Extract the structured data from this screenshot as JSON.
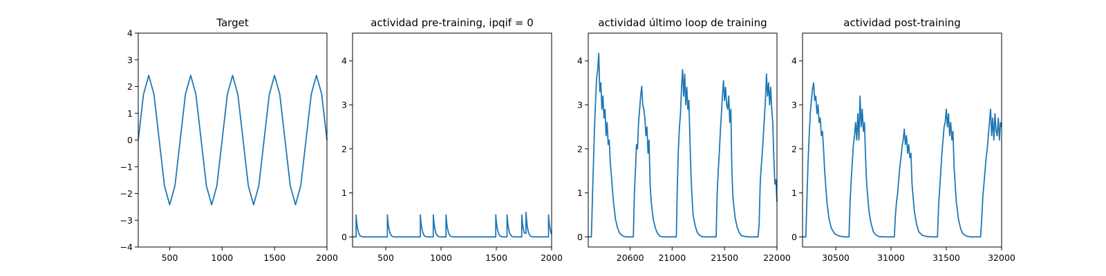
{
  "chart_data": [
    {
      "type": "line",
      "title": "Target",
      "xlabel": "",
      "ylabel": "",
      "xlim": [
        200,
        2000
      ],
      "ylim": [
        -4,
        4
      ],
      "xticks": [
        500,
        1000,
        1500,
        2000
      ],
      "xtick_labels": [
        "500",
        "1000",
        "1500",
        "2000"
      ],
      "yticks": [
        -4,
        -3,
        -2,
        -1,
        0,
        1,
        2,
        3,
        4
      ],
      "ytick_labels": [
        "−4",
        "−3",
        "−2",
        "−1",
        "0",
        "1",
        "2",
        "3",
        "4"
      ],
      "grid": false,
      "color": "#1f77b4",
      "series": [
        {
          "x": [
            200,
            250,
            300,
            350,
            400,
            450,
            500,
            550,
            600,
            650,
            700,
            750,
            800,
            850,
            900,
            950,
            1000,
            1050,
            1100,
            1150,
            1200,
            1250,
            1300,
            1350,
            1400,
            1450,
            1500,
            1550,
            1600,
            1650,
            1700,
            1750,
            1800,
            1850,
            1900,
            1950,
            2000
          ],
          "y": [
            0,
            1.71,
            2.42,
            1.71,
            0,
            -1.71,
            -2.42,
            -1.71,
            0,
            1.71,
            2.42,
            1.71,
            0,
            -1.71,
            -2.42,
            -1.71,
            0,
            1.71,
            2.42,
            1.71,
            0,
            -1.71,
            -2.42,
            -1.71,
            0,
            1.71,
            2.42,
            1.71,
            0,
            -1.71,
            -2.42,
            -1.71,
            0,
            1.71,
            2.42,
            1.71,
            0
          ]
        }
      ]
    },
    {
      "type": "line",
      "title": "actividad pre-training, ipqif = 0",
      "xlabel": "",
      "ylabel": "",
      "xlim": [
        200,
        2000
      ],
      "ylim": [
        -0.23,
        4.63
      ],
      "xticks": [
        500,
        1000,
        1500,
        2000
      ],
      "xtick_labels": [
        "500",
        "1000",
        "1500",
        "2000"
      ],
      "yticks": [
        0,
        1,
        2,
        3,
        4
      ],
      "ytick_labels": [
        "0",
        "1",
        "2",
        "3",
        "4"
      ],
      "grid": false,
      "color": "#1f77b4",
      "series": [
        {
          "x": [
            200,
            232,
            232,
            238,
            245,
            255,
            270,
            290,
            515,
            515,
            521,
            528,
            538,
            553,
            573,
            813,
            813,
            819,
            826,
            836,
            851,
            871,
            930,
            930,
            936,
            943,
            953,
            968,
            988,
            1045,
            1045,
            1051,
            1058,
            1068,
            1083,
            1103,
            1495,
            1495,
            1501,
            1508,
            1518,
            1533,
            1553,
            1597,
            1597,
            1603,
            1610,
            1620,
            1635,
            1655,
            1730,
            1730,
            1736,
            1743,
            1753,
            1768,
            1768,
            1774,
            1781,
            1791,
            1806,
            1826,
            1972,
            1972,
            1978,
            1985,
            1995,
            2000
          ],
          "y": [
            0,
            0,
            0.5,
            0.33,
            0.2,
            0.09,
            0.02,
            0,
            0,
            0.5,
            0.33,
            0.2,
            0.09,
            0.02,
            0,
            0,
            0.5,
            0.33,
            0.2,
            0.09,
            0.02,
            0,
            0,
            0.5,
            0.33,
            0.2,
            0.09,
            0.02,
            0,
            0,
            0.5,
            0.33,
            0.2,
            0.09,
            0.02,
            0,
            0,
            0.5,
            0.33,
            0.2,
            0.09,
            0.02,
            0,
            0,
            0.5,
            0.33,
            0.2,
            0.09,
            0.02,
            0,
            0,
            0.5,
            0.33,
            0.2,
            0.09,
            0.08,
            0.56,
            0.38,
            0.22,
            0.1,
            0.02,
            0,
            0,
            0.5,
            0.33,
            0.2,
            0.09,
            0.06
          ]
        }
      ]
    },
    {
      "type": "line",
      "title": "actividad último loop de training",
      "xlabel": "",
      "ylabel": "",
      "xlim": [
        20200,
        22000
      ],
      "ylim": [
        -0.23,
        4.63
      ],
      "xticks": [
        20600,
        21000,
        21500,
        22000
      ],
      "xtick_labels": [
        "20600",
        "21000",
        "21500",
        "22000"
      ],
      "yticks": [
        0,
        1,
        2,
        3,
        4
      ],
      "ytick_labels": [
        "0",
        "1",
        "2",
        "3",
        "4"
      ],
      "grid": false,
      "color": "#1f77b4",
      "series": [
        {
          "x": [
            20200,
            20230,
            20240,
            20250,
            20260,
            20270,
            20280,
            20290,
            20300,
            20310,
            20320,
            20330,
            20340,
            20350,
            20360,
            20370,
            20380,
            20390,
            20400,
            20410,
            20420,
            20440,
            20460,
            20480,
            20500,
            20530,
            20560,
            20600,
            20630,
            20640,
            20650,
            20660,
            20670,
            20680,
            20690,
            20700,
            20710,
            20720,
            20730,
            20740,
            20750,
            20760,
            20770,
            20780,
            20790,
            20800,
            20820,
            20840,
            20860,
            20880,
            20910,
            20950,
            21000,
            21040,
            21050,
            21060,
            21070,
            21080,
            21090,
            21100,
            21110,
            21120,
            21130,
            21140,
            21150,
            21160,
            21170,
            21180,
            21190,
            21200,
            21220,
            21240,
            21260,
            21280,
            21310,
            21350,
            21400,
            21420,
            21430,
            21440,
            21450,
            21460,
            21470,
            21480,
            21490,
            21500,
            21510,
            21520,
            21530,
            21540,
            21550,
            21560,
            21570,
            21580,
            21600,
            21620,
            21640,
            21660,
            21690,
            21730,
            21780,
            21820,
            21830,
            21840,
            21850,
            21860,
            21870,
            21880,
            21890,
            21900,
            21910,
            21920,
            21930,
            21940,
            21950,
            21960,
            21970,
            21980,
            21990,
            22000
          ],
          "y": [
            0,
            0,
            0.9,
            1.7,
            2.5,
            3.1,
            3.6,
            3.8,
            4.17,
            3.3,
            3.5,
            2.9,
            3.2,
            2.7,
            2.9,
            2.3,
            2.6,
            2.1,
            2.2,
            1.7,
            1.4,
            0.8,
            0.4,
            0.2,
            0.08,
            0.02,
            0,
            0,
            0,
            1.0,
            1.5,
            2.1,
            2.0,
            2.6,
            2.9,
            3.2,
            3.42,
            3.0,
            2.9,
            2.7,
            2.3,
            2.5,
            1.9,
            2.2,
            1.2,
            0.8,
            0.4,
            0.2,
            0.08,
            0.02,
            0,
            0,
            0,
            0,
            1.2,
            2.0,
            2.5,
            2.8,
            3.4,
            3.8,
            3.2,
            3.7,
            3.0,
            3.4,
            2.9,
            3.1,
            2.2,
            1.4,
            0.9,
            0.5,
            0.25,
            0.1,
            0.04,
            0.01,
            0,
            0,
            0,
            0,
            1.0,
            1.5,
            1.9,
            2.4,
            2.8,
            3.2,
            3.55,
            3.1,
            3.4,
            3.0,
            2.9,
            3.2,
            2.6,
            2.9,
            1.5,
            0.9,
            0.45,
            0.22,
            0.1,
            0.03,
            0.01,
            0,
            0,
            0,
            0.3,
            1.2,
            1.6,
            1.9,
            2.3,
            2.7,
            3.1,
            3.7,
            3.2,
            3.5,
            3.0,
            3.4,
            2.9,
            2.6,
            1.8,
            1.2,
            1.3,
            0.8
          ]
        }
      ]
    },
    {
      "type": "line",
      "title": "actividad post-training",
      "xlabel": "",
      "ylabel": "",
      "xlim": [
        30200,
        32000
      ],
      "ylim": [
        -0.23,
        4.63
      ],
      "xticks": [
        30500,
        31000,
        31500,
        32000
      ],
      "xtick_labels": [
        "30500",
        "31000",
        "31500",
        "32000"
      ],
      "yticks": [
        0,
        1,
        2,
        3,
        4
      ],
      "ytick_labels": [
        "0",
        "1",
        "2",
        "3",
        "4"
      ],
      "grid": false,
      "color": "#1f77b4",
      "series": [
        {
          "x": [
            30200,
            30230,
            30240,
            30250,
            30260,
            30270,
            30280,
            30290,
            30300,
            30310,
            30320,
            30330,
            30340,
            30350,
            30360,
            30370,
            30380,
            30390,
            30400,
            30420,
            30440,
            30460,
            30490,
            30530,
            30580,
            30620,
            30630,
            30640,
            30650,
            30660,
            30670,
            30680,
            30690,
            30700,
            30710,
            30720,
            30730,
            30740,
            30750,
            30760,
            30770,
            30780,
            30800,
            30820,
            30840,
            30860,
            30890,
            30930,
            30980,
            31030,
            31040,
            31050,
            31060,
            31070,
            31080,
            31090,
            31100,
            31110,
            31120,
            31130,
            31140,
            31150,
            31160,
            31170,
            31180,
            31190,
            31210,
            31230,
            31250,
            31280,
            31320,
            31370,
            31420,
            31430,
            31440,
            31450,
            31460,
            31470,
            31480,
            31490,
            31500,
            31510,
            31520,
            31530,
            31540,
            31550,
            31560,
            31570,
            31590,
            31610,
            31630,
            31650,
            31680,
            31720,
            31770,
            31810,
            31820,
            31830,
            31840,
            31850,
            31860,
            31870,
            31880,
            31890,
            31900,
            31910,
            31920,
            31930,
            31940,
            31950,
            31960,
            31970,
            31980,
            31990,
            32000
          ],
          "y": [
            0,
            0,
            0.9,
            1.7,
            2.3,
            2.8,
            3.1,
            3.35,
            3.5,
            3.1,
            3.2,
            2.8,
            3.0,
            2.6,
            2.7,
            2.3,
            2.4,
            2.0,
            1.5,
            0.8,
            0.4,
            0.2,
            0.07,
            0.02,
            0,
            0,
            0.8,
            1.3,
            1.7,
            2.1,
            2.3,
            2.6,
            2.2,
            2.8,
            2.2,
            3.2,
            2.5,
            2.9,
            2.4,
            2.6,
            1.8,
            1.2,
            0.6,
            0.3,
            0.12,
            0.05,
            0.01,
            0,
            0,
            0,
            0.5,
            0.8,
            1.0,
            1.3,
            1.6,
            1.8,
            2.05,
            2.2,
            2.45,
            2.1,
            2.3,
            1.9,
            2.1,
            1.8,
            1.9,
            1.2,
            0.6,
            0.3,
            0.12,
            0.04,
            0.01,
            0,
            0,
            0.7,
            1.1,
            1.5,
            1.9,
            2.2,
            2.5,
            2.6,
            2.9,
            2.5,
            2.8,
            2.3,
            2.6,
            2.2,
            2.4,
            1.6,
            0.8,
            0.4,
            0.18,
            0.07,
            0.02,
            0,
            0,
            0,
            0.4,
            0.9,
            1.2,
            1.5,
            1.8,
            2.0,
            2.3,
            2.6,
            2.9,
            2.3,
            2.7,
            2.2,
            2.8,
            2.4,
            2.3,
            2.7,
            2.2,
            2.6,
            2.5
          ]
        }
      ]
    }
  ]
}
